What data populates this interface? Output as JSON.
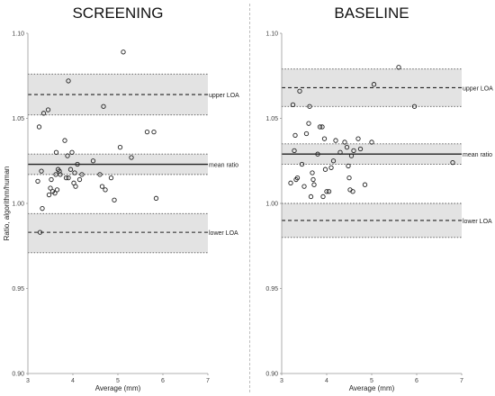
{
  "chart_data": [
    {
      "type": "scatter",
      "title": "SCREENING",
      "xlabel": "Average (mm)",
      "ylabel": "Ratio, algorithm/human",
      "xlim": [
        3,
        7
      ],
      "ylim": [
        0.9,
        1.1
      ],
      "xticks": [
        "3",
        "4",
        "5",
        "6",
        "7"
      ],
      "yticks": [
        "0.90",
        "0.95",
        "1.00",
        "1.05",
        "1.10"
      ],
      "grid": false,
      "reference_lines": [
        {
          "label": "upper LOA",
          "value": 1.064,
          "ci": [
            1.052,
            1.076
          ],
          "style": "dashed"
        },
        {
          "label": "mean ratio",
          "value": 1.023,
          "ci": [
            1.017,
            1.029
          ],
          "style": "solid"
        },
        {
          "label": "lower LOA",
          "value": 0.983,
          "ci": [
            0.971,
            0.994
          ],
          "style": "dashed"
        }
      ],
      "points": [
        [
          3.22,
          1.013
        ],
        [
          3.25,
          1.045
        ],
        [
          3.27,
          0.983
        ],
        [
          3.3,
          1.019
        ],
        [
          3.32,
          0.997
        ],
        [
          3.35,
          1.053
        ],
        [
          3.45,
          1.055
        ],
        [
          3.47,
          1.005
        ],
        [
          3.5,
          1.009
        ],
        [
          3.52,
          1.014
        ],
        [
          3.55,
          1.007
        ],
        [
          3.6,
          1.006
        ],
        [
          3.62,
          1.017
        ],
        [
          3.63,
          1.03
        ],
        [
          3.65,
          1.008
        ],
        [
          3.67,
          1.02
        ],
        [
          3.7,
          1.019
        ],
        [
          3.72,
          1.017
        ],
        [
          3.82,
          1.037
        ],
        [
          3.85,
          1.015
        ],
        [
          3.88,
          1.028
        ],
        [
          3.9,
          1.015
        ],
        [
          3.9,
          1.072
        ],
        [
          3.95,
          1.02
        ],
        [
          3.98,
          1.03
        ],
        [
          4.02,
          1.012
        ],
        [
          4.04,
          1.018
        ],
        [
          4.06,
          1.01
        ],
        [
          4.1,
          1.023
        ],
        [
          4.15,
          1.014
        ],
        [
          4.2,
          1.017
        ],
        [
          4.45,
          1.025
        ],
        [
          4.6,
          1.017
        ],
        [
          4.65,
          1.01
        ],
        [
          4.68,
          1.057
        ],
        [
          4.72,
          1.008
        ],
        [
          4.85,
          1.015
        ],
        [
          4.92,
          1.002
        ],
        [
          5.05,
          1.033
        ],
        [
          5.12,
          1.089
        ],
        [
          5.3,
          1.027
        ],
        [
          5.65,
          1.042
        ],
        [
          5.8,
          1.042
        ],
        [
          5.85,
          1.003
        ]
      ]
    },
    {
      "type": "scatter",
      "title": "BASELINE",
      "xlabel": "Average (mm)",
      "ylabel": "",
      "xlim": [
        3,
        7
      ],
      "ylim": [
        0.9,
        1.1
      ],
      "xticks": [
        "3",
        "4",
        "5",
        "6",
        "7"
      ],
      "yticks": [
        "0.90",
        "0.95",
        "1.00",
        "1.05",
        "1.10"
      ],
      "grid": false,
      "reference_lines": [
        {
          "label": "upper LOA",
          "value": 1.068,
          "ci": [
            1.057,
            1.079
          ],
          "style": "dashed"
        },
        {
          "label": "mean ratio",
          "value": 1.029,
          "ci": [
            1.023,
            1.035
          ],
          "style": "solid"
        },
        {
          "label": "lower LOA",
          "value": 0.99,
          "ci": [
            0.98,
            1.0
          ],
          "style": "dashed"
        }
      ],
      "points": [
        [
          3.2,
          1.012
        ],
        [
          3.25,
          1.058
        ],
        [
          3.28,
          1.031
        ],
        [
          3.3,
          1.04
        ],
        [
          3.32,
          1.014
        ],
        [
          3.35,
          1.015
        ],
        [
          3.4,
          1.066
        ],
        [
          3.45,
          1.023
        ],
        [
          3.5,
          1.01
        ],
        [
          3.55,
          1.041
        ],
        [
          3.6,
          1.047
        ],
        [
          3.62,
          1.057
        ],
        [
          3.65,
          1.004
        ],
        [
          3.68,
          1.018
        ],
        [
          3.7,
          1.014
        ],
        [
          3.72,
          1.011
        ],
        [
          3.8,
          1.029
        ],
        [
          3.85,
          1.045
        ],
        [
          3.9,
          1.045
        ],
        [
          3.92,
          1.004
        ],
        [
          3.95,
          1.038
        ],
        [
          3.97,
          1.02
        ],
        [
          4.0,
          1.007
        ],
        [
          4.05,
          1.007
        ],
        [
          4.1,
          1.021
        ],
        [
          4.15,
          1.025
        ],
        [
          4.2,
          1.037
        ],
        [
          4.3,
          1.03
        ],
        [
          4.4,
          1.036
        ],
        [
          4.45,
          1.033
        ],
        [
          4.48,
          1.022
        ],
        [
          4.5,
          1.015
        ],
        [
          4.52,
          1.008
        ],
        [
          4.55,
          1.028
        ],
        [
          4.58,
          1.007
        ],
        [
          4.6,
          1.031
        ],
        [
          4.7,
          1.038
        ],
        [
          4.75,
          1.032
        ],
        [
          4.85,
          1.011
        ],
        [
          5.0,
          1.036
        ],
        [
          5.05,
          1.07
        ],
        [
          5.6,
          1.08
        ],
        [
          5.95,
          1.057
        ],
        [
          6.8,
          1.024
        ]
      ]
    }
  ]
}
